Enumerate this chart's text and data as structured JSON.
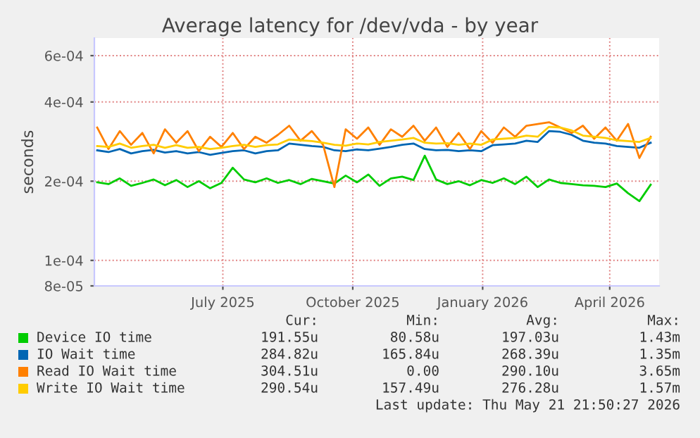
{
  "chart_data": {
    "type": "line",
    "title": "Average latency for /dev/vda - by year",
    "ylabel": "seconds",
    "log": "y",
    "x": [
      "2025-04-18",
      "2025-04-26",
      "2025-05-04",
      "2025-05-12",
      "2025-05-20",
      "2025-05-28",
      "2025-06-05",
      "2025-06-13",
      "2025-06-21",
      "2025-06-29",
      "2025-07-07",
      "2025-07-15",
      "2025-07-23",
      "2025-07-31",
      "2025-08-08",
      "2025-08-16",
      "2025-08-24",
      "2025-09-01",
      "2025-09-09",
      "2025-09-17",
      "2025-09-25",
      "2025-10-03",
      "2025-10-11",
      "2025-10-19",
      "2025-10-27",
      "2025-11-04",
      "2025-11-12",
      "2025-11-20",
      "2025-11-28",
      "2025-12-06",
      "2025-12-14",
      "2025-12-22",
      "2025-12-30",
      "2026-01-07",
      "2026-01-15",
      "2026-01-23",
      "2026-01-31",
      "2026-02-08",
      "2026-02-16",
      "2026-02-24",
      "2026-03-04",
      "2026-03-12",
      "2026-03-20",
      "2026-03-28",
      "2026-04-05",
      "2026-04-13",
      "2026-04-21",
      "2026-04-29",
      "2026-05-07",
      "2026-05-15"
    ],
    "series": [
      {
        "name": "Device IO time",
        "color": "#00cc00",
        "values": [
          0.000198,
          0.000195,
          0.000205,
          0.000192,
          0.000197,
          0.000203,
          0.000193,
          0.000202,
          0.00019,
          0.0002,
          0.000188,
          0.000197,
          0.000225,
          0.000203,
          0.000198,
          0.000205,
          0.000197,
          0.000202,
          0.000195,
          0.000204,
          0.0002,
          0.000196,
          0.00021,
          0.000198,
          0.000212,
          0.000192,
          0.000205,
          0.000208,
          0.000202,
          0.00025,
          0.000203,
          0.000195,
          0.0002,
          0.000193,
          0.000202,
          0.000197,
          0.000205,
          0.000195,
          0.000208,
          0.00019,
          0.000203,
          0.000197,
          0.000195,
          0.000193,
          0.000192,
          0.00019,
          0.000196,
          0.00018,
          0.000168,
          0.000194
        ]
      },
      {
        "name": "IO Wait time",
        "color": "#0066b3",
        "values": [
          0.000262,
          0.000258,
          0.000265,
          0.000255,
          0.00026,
          0.000263,
          0.000257,
          0.00026,
          0.000255,
          0.000258,
          0.000252,
          0.000256,
          0.00026,
          0.000262,
          0.000255,
          0.00026,
          0.000262,
          0.000278,
          0.000275,
          0.000272,
          0.00027,
          0.000262,
          0.00026,
          0.000264,
          0.000262,
          0.000266,
          0.00027,
          0.000275,
          0.000278,
          0.000265,
          0.000262,
          0.000263,
          0.00026,
          0.000262,
          0.00026,
          0.000274,
          0.000276,
          0.000278,
          0.000285,
          0.000282,
          0.00031,
          0.000308,
          0.0003,
          0.000285,
          0.00028,
          0.000278,
          0.000272,
          0.00027,
          0.000268,
          0.00028
        ]
      },
      {
        "name": "Read IO Wait time",
        "color": "#ff8000",
        "values": [
          0.00032,
          0.000265,
          0.00031,
          0.000275,
          0.000305,
          0.000255,
          0.000315,
          0.00028,
          0.00031,
          0.00026,
          0.000295,
          0.00027,
          0.000305,
          0.000265,
          0.000295,
          0.00028,
          0.0003,
          0.000325,
          0.000285,
          0.00031,
          0.000275,
          0.00019,
          0.000315,
          0.00029,
          0.00032,
          0.000275,
          0.000315,
          0.000295,
          0.000325,
          0.000285,
          0.00032,
          0.00027,
          0.000305,
          0.000265,
          0.00031,
          0.00028,
          0.00032,
          0.000295,
          0.000325,
          0.00033,
          0.000335,
          0.00032,
          0.000305,
          0.000325,
          0.00029,
          0.00032,
          0.000285,
          0.00033,
          0.000245,
          0.000295
        ]
      },
      {
        "name": "Write IO Wait time",
        "color": "#ffcc00",
        "values": [
          0.000272,
          0.00027,
          0.000278,
          0.000268,
          0.000272,
          0.000275,
          0.000268,
          0.000274,
          0.000268,
          0.00027,
          0.000265,
          0.000268,
          0.000272,
          0.000275,
          0.00027,
          0.000274,
          0.000276,
          0.000288,
          0.000286,
          0.000284,
          0.00028,
          0.000275,
          0.000273,
          0.000278,
          0.000276,
          0.000282,
          0.000285,
          0.000288,
          0.000292,
          0.00028,
          0.000278,
          0.000279,
          0.000275,
          0.000278,
          0.000275,
          0.000288,
          0.00029,
          0.000292,
          0.000298,
          0.000295,
          0.000322,
          0.00032,
          0.000312,
          0.000298,
          0.000295,
          0.000292,
          0.000286,
          0.000284,
          0.000282,
          0.000292
        ]
      }
    ],
    "xlim": [
      "2025-04-16",
      "2026-05-21"
    ],
    "xticks": [
      {
        "value": "2025-07-16",
        "label": "July 2025"
      },
      {
        "value": "2025-10-16",
        "label": "October 2025"
      },
      {
        "value": "2026-01-16",
        "label": "January 2026"
      },
      {
        "value": "2026-04-16",
        "label": "April 2026"
      }
    ],
    "ylim": [
      8e-05,
      0.0007
    ],
    "yticks": [
      {
        "value": 8e-05,
        "label": "8e-05"
      },
      {
        "value": 0.0001,
        "label": "1e-04"
      },
      {
        "value": 0.0002,
        "label": "2e-04"
      },
      {
        "value": 0.0004,
        "label": "4e-04"
      },
      {
        "value": 0.0006,
        "label": "6e-04"
      }
    ],
    "grid": true,
    "legend": "bottom",
    "marker": "none",
    "line_style": "solid",
    "annotations": [
      "Cur:",
      "Min:",
      "Avg:",
      "Max:",
      "191.55u",
      "80.58u",
      "197.03u",
      "1.43m",
      "284.82u",
      "165.84u",
      "268.39u",
      "1.35m",
      "304.51u",
      "0.00",
      "290.10u",
      "3.65m",
      "290.54u",
      "157.49u",
      "276.28u",
      "1.57m",
      "Last update: Thu May 21 21:50:27 2026"
    ]
  }
}
